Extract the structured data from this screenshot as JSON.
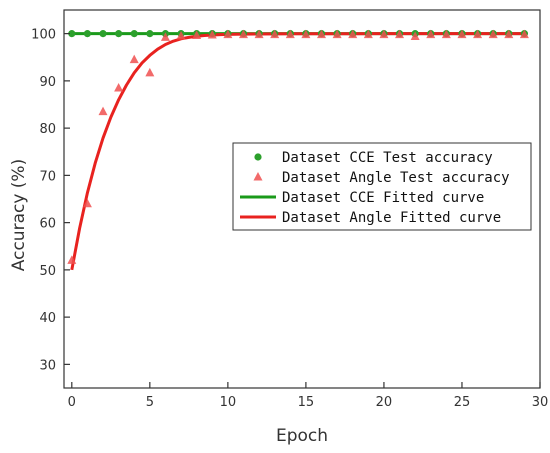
{
  "chart_data": {
    "type": "scatter",
    "xlabel": "Epoch",
    "ylabel": "Accuracy (%)",
    "xlim": [
      -0.5,
      30
    ],
    "ylim": [
      25,
      105
    ],
    "xticks": [
      0,
      5,
      10,
      15,
      20,
      25,
      30
    ],
    "yticks": [
      30,
      40,
      50,
      60,
      70,
      80,
      90,
      100
    ],
    "grid": false,
    "legend_position": "center-right",
    "series": [
      {
        "name": "Dataset CCE Test accuracy",
        "kind": "scatter",
        "marker": "circle",
        "color": "#2ca02c",
        "x": [
          0,
          1,
          2,
          3,
          4,
          5,
          6,
          7,
          8,
          9,
          10,
          11,
          12,
          13,
          14,
          15,
          16,
          17,
          18,
          19,
          20,
          21,
          22,
          23,
          24,
          25,
          26,
          27,
          28,
          29
        ],
        "y": [
          100,
          100,
          100,
          100,
          100,
          100,
          100,
          100,
          100,
          100,
          100,
          100,
          100,
          100,
          100,
          100,
          100,
          100,
          100,
          100,
          100,
          100,
          100,
          100,
          100,
          100,
          100,
          100,
          100,
          100
        ]
      },
      {
        "name": "Dataset Angle Test accuracy",
        "kind": "scatter",
        "marker": "triangle",
        "color": "#f05050",
        "x": [
          0,
          1,
          2,
          3,
          4,
          5,
          6,
          7,
          8,
          9,
          10,
          11,
          12,
          13,
          14,
          15,
          16,
          17,
          18,
          19,
          20,
          21,
          22,
          23,
          24,
          25,
          26,
          27,
          28,
          29
        ],
        "y": [
          52,
          64,
          83.5,
          88.5,
          94.5,
          91.7,
          99.2,
          99.5,
          99.6,
          99.7,
          99.8,
          99.8,
          99.8,
          99.8,
          99.8,
          99.8,
          99.8,
          99.8,
          99.8,
          99.8,
          99.8,
          99.8,
          99.4,
          99.8,
          99.8,
          99.8,
          99.8,
          99.8,
          99.8,
          99.8
        ]
      },
      {
        "name": "Dataset CCE Fitted curve",
        "kind": "line",
        "color": "#1a9a1a",
        "x": [
          0,
          29
        ],
        "y": [
          100,
          100
        ]
      },
      {
        "name": "Dataset Angle Fitted curve",
        "kind": "line",
        "color": "#e8221f",
        "x": [
          0,
          0.5,
          1,
          1.5,
          2,
          2.5,
          3,
          3.5,
          4,
          4.5,
          5,
          5.5,
          6,
          6.5,
          7,
          7.5,
          8,
          8.5,
          9,
          9.5,
          10,
          11,
          12,
          13,
          14,
          16,
          18,
          20,
          22,
          24,
          26,
          29
        ],
        "y": [
          50,
          58.8,
          66.3,
          72.6,
          77.9,
          82.3,
          86,
          89.1,
          91.7,
          93.8,
          95.4,
          96.7,
          97.7,
          98.4,
          98.9,
          99.2,
          99.45,
          99.6,
          99.7,
          99.78,
          99.84,
          99.9,
          99.93,
          99.95,
          99.96,
          99.97,
          99.98,
          99.99,
          99.99,
          100,
          100,
          100
        ]
      }
    ]
  }
}
